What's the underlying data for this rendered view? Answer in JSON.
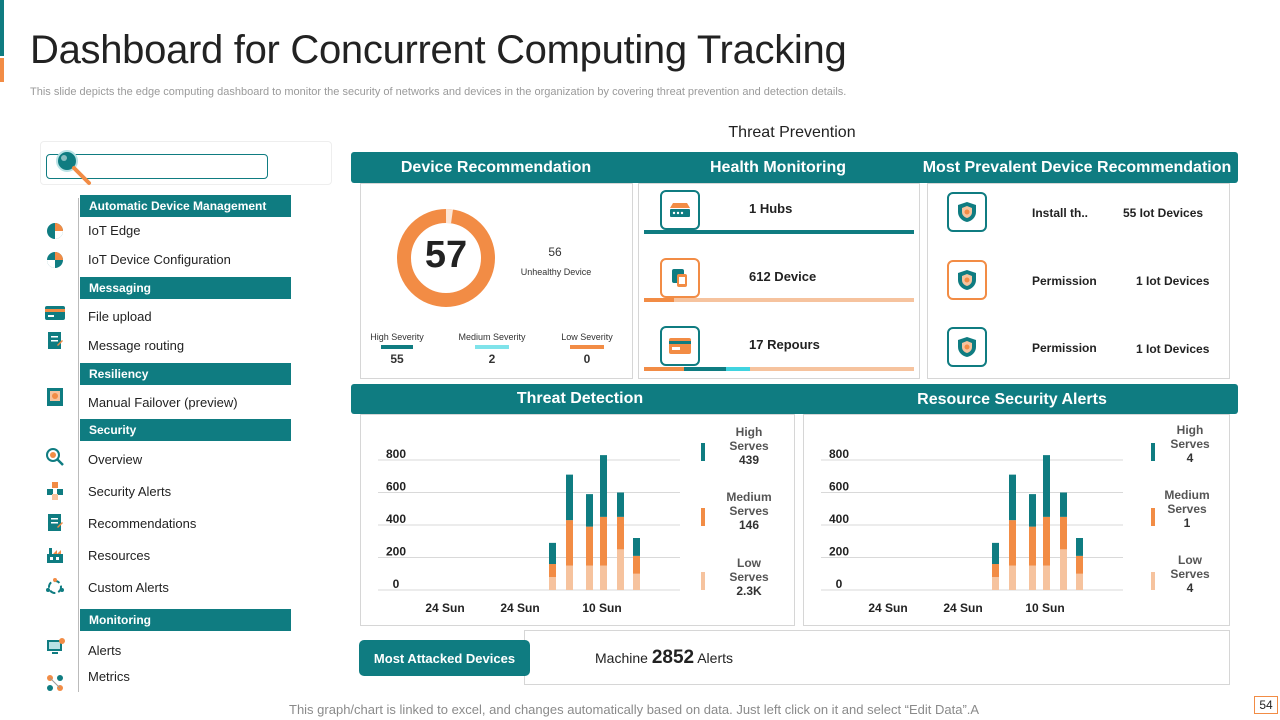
{
  "page": {
    "title": "Dashboard for Concurrent Computing Tracking",
    "subtitle": "This slide depicts the edge computing dashboard to monitor the security of networks and devices in the organization by covering threat prevention and detection details.",
    "footer_note": "This graph/chart is linked to excel, and changes automatically based on data. Just left click on it and select “Edit Data”.A",
    "page_number": "54",
    "section_label": "Threat Prevention"
  },
  "search": {
    "placeholder": ""
  },
  "sidebar": {
    "groups": [
      {
        "heading": "Automatic Device Management",
        "items": [
          {
            "label": "IoT Edge",
            "icon": "pie-chart-icon"
          },
          {
            "label": "IoT Device Configuration",
            "icon": "pie-chart-icon"
          }
        ]
      },
      {
        "heading": "Messaging",
        "items": [
          {
            "label": "File upload",
            "icon": "card-icon"
          },
          {
            "label": "Message routing",
            "icon": "document-icon"
          }
        ]
      },
      {
        "heading": "Resiliency",
        "items": [
          {
            "label": "Manual Failover (preview)",
            "icon": "book-icon"
          }
        ]
      },
      {
        "heading": "Security",
        "items": [
          {
            "label": "Overview",
            "icon": "magnifier-icon"
          },
          {
            "label": "Security Alerts",
            "icon": "cubes-icon"
          },
          {
            "label": "Recommendations",
            "icon": "document-icon"
          },
          {
            "label": "Resources",
            "icon": "factory-icon"
          },
          {
            "label": "Custom Alerts",
            "icon": "cycle-icon"
          }
        ]
      },
      {
        "heading": "Monitoring",
        "items": [
          {
            "label": "Alerts",
            "icon": "monitor-icon"
          },
          {
            "label": "Metrics",
            "icon": "network-icon"
          }
        ]
      }
    ]
  },
  "device_recommendation": {
    "heading": "Device Recommendation",
    "score": "57",
    "unhealthy_count": "56",
    "unhealthy_label": "Unhealthy Device",
    "severities": [
      {
        "label": "High Severity",
        "value": "55",
        "color": "#0f7c81"
      },
      {
        "label": "Medium Severity",
        "value": "2",
        "color": "#7fe3ea"
      },
      {
        "label": "Low Severity",
        "value": "0",
        "color": "#f28c45"
      }
    ]
  },
  "health_monitoring": {
    "heading": "Health Monitoring",
    "rows": [
      {
        "label": "1 Hubs",
        "icon": "hub-icon"
      },
      {
        "label": "612 Device",
        "icon": "devices-icon"
      },
      {
        "label": "17 Repours",
        "icon": "card-icon"
      }
    ]
  },
  "prevalent": {
    "heading": "Most Prevalent Device Recommendation",
    "rows": [
      {
        "action": "Install th..",
        "devices": "55 Iot Devices",
        "icon": "shield-icon"
      },
      {
        "action": "Permission",
        "devices": "1 Iot Devices",
        "icon": "shield-icon"
      },
      {
        "action": "Permission",
        "devices": "1 Iot Devices",
        "icon": "shield-icon"
      }
    ]
  },
  "threat_detection": {
    "heading": "Threat Detection",
    "legend": [
      {
        "level": "High",
        "label": "Serves",
        "value": "439",
        "color": "#0f7c81"
      },
      {
        "level": "Medium",
        "label": "Serves",
        "value": "146",
        "color": "#f28c45"
      },
      {
        "level": "Low",
        "label": "Serves",
        "value": "2.3K",
        "color": "#f6c39e"
      }
    ]
  },
  "resource_alerts": {
    "heading": "Resource Security Alerts",
    "legend": [
      {
        "level": "High",
        "label": "Serves",
        "value": "4",
        "color": "#0f7c81"
      },
      {
        "level": "Medium",
        "label": "Serves",
        "value": "1",
        "color": "#f28c45"
      },
      {
        "level": "Low",
        "label": "Serves",
        "value": "4",
        "color": "#f6c39e"
      }
    ]
  },
  "most_attacked": {
    "button_label": "Most Attacked Devices",
    "prefix": "Machine",
    "count": "2852",
    "suffix": "Alerts"
  },
  "chart_data": [
    {
      "type": "bar",
      "title": "Threat Detection",
      "stacked": true,
      "categories": [
        "",
        "",
        "",
        "",
        "",
        ""
      ],
      "x_tick_labels": [
        "24 Sun",
        "24 Sun",
        "10 Sun"
      ],
      "yticks": [
        0,
        200,
        400,
        600,
        800
      ],
      "ylim": [
        0,
        900
      ],
      "series": [
        {
          "name": "Low",
          "values": [
            80,
            150,
            150,
            150,
            250,
            100
          ]
        },
        {
          "name": "Medium",
          "values": [
            80,
            280,
            240,
            300,
            200,
            110
          ]
        },
        {
          "name": "High",
          "values": [
            130,
            280,
            200,
            380,
            150,
            110
          ]
        }
      ]
    },
    {
      "type": "bar",
      "title": "Resource Security Alerts",
      "stacked": true,
      "categories": [
        "",
        "",
        "",
        "",
        "",
        ""
      ],
      "x_tick_labels": [
        "24 Sun",
        "24 Sun",
        "10 Sun"
      ],
      "yticks": [
        0,
        200,
        400,
        600,
        800
      ],
      "ylim": [
        0,
        900
      ],
      "series": [
        {
          "name": "Low",
          "values": [
            80,
            150,
            150,
            150,
            250,
            100
          ]
        },
        {
          "name": "Medium",
          "values": [
            80,
            280,
            240,
            300,
            200,
            110
          ]
        },
        {
          "name": "High",
          "values": [
            130,
            280,
            200,
            380,
            150,
            110
          ]
        }
      ]
    }
  ]
}
